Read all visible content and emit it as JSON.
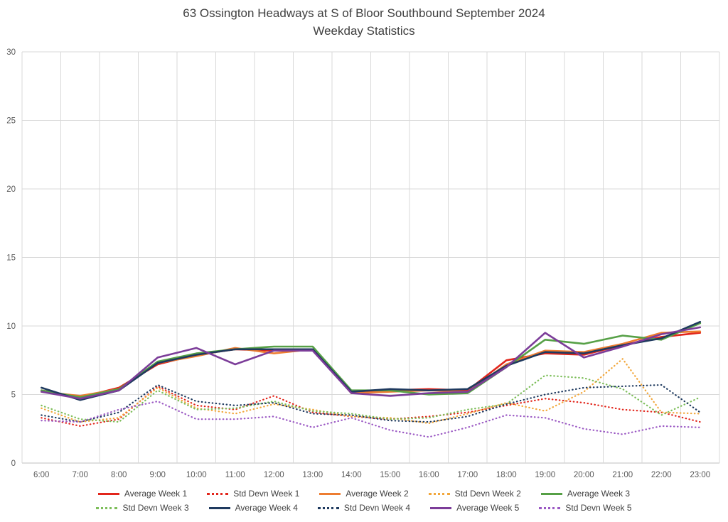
{
  "title": {
    "line1": "63 Ossington Headways at S of Bloor Southbound September 2024",
    "line2": "Weekday Statistics"
  },
  "chart_data": {
    "type": "line",
    "title": "63 Ossington Headways at S of Bloor Southbound September 2024",
    "subtitle": "Weekday Statistics",
    "xlabel": "",
    "ylabel": "",
    "ylim": [
      0,
      30
    ],
    "ytick_step": 5,
    "grid": true,
    "legend_position": "bottom",
    "grid_color": "#D9D9D9",
    "axis_line_color": "#BFBFBF",
    "axis_label_color": "#595959",
    "categories": [
      "6:00",
      "7:00",
      "8:00",
      "9:00",
      "10:00",
      "11:00",
      "12:00",
      "13:00",
      "14:00",
      "15:00",
      "16:00",
      "17:00",
      "18:00",
      "19:00",
      "20:00",
      "21:00",
      "22:00",
      "23:00"
    ],
    "series": [
      {
        "name": "Average Week 1",
        "color": "#E2261C",
        "style": "solid",
        "values": [
          5.3,
          4.8,
          5.5,
          7.2,
          7.9,
          8.3,
          8.2,
          8.3,
          5.2,
          5.3,
          5.4,
          5.3,
          7.5,
          8.0,
          7.9,
          8.6,
          9.2,
          9.5
        ]
      },
      {
        "name": "Std Devn Week 1",
        "color": "#E2261C",
        "style": "dotted",
        "values": [
          3.3,
          2.7,
          3.2,
          5.6,
          4.2,
          3.9,
          4.9,
          3.7,
          3.4,
          3.2,
          3.4,
          3.7,
          4.2,
          4.7,
          4.4,
          3.9,
          3.7,
          3.0
        ]
      },
      {
        "name": "Average Week 2",
        "color": "#ED7D31",
        "style": "solid",
        "values": [
          5.2,
          4.9,
          5.4,
          7.3,
          7.8,
          8.4,
          8.0,
          8.3,
          5.1,
          5.2,
          5.3,
          5.2,
          7.2,
          8.2,
          8.1,
          8.7,
          9.5,
          9.6
        ]
      },
      {
        "name": "Std Devn Week 2",
        "color": "#F2A73B",
        "style": "dotted",
        "values": [
          4.0,
          3.0,
          3.3,
          5.5,
          4.0,
          3.6,
          4.3,
          3.9,
          3.4,
          3.3,
          2.9,
          3.6,
          4.4,
          3.8,
          5.2,
          7.6,
          3.7,
          3.6
        ]
      },
      {
        "name": "Average Week 3",
        "color": "#56A046",
        "style": "solid",
        "values": [
          5.3,
          4.8,
          5.4,
          7.4,
          8.0,
          8.3,
          8.5,
          8.5,
          5.3,
          5.3,
          5.0,
          5.1,
          7.0,
          9.0,
          8.7,
          9.3,
          9.0,
          10.2
        ]
      },
      {
        "name": "Std Devn Week 3",
        "color": "#7DBE5A",
        "style": "dotted",
        "values": [
          4.2,
          3.2,
          3.0,
          5.3,
          3.9,
          4.0,
          4.5,
          3.8,
          3.6,
          3.2,
          3.3,
          3.9,
          4.3,
          6.4,
          6.2,
          5.4,
          3.5,
          4.8
        ]
      },
      {
        "name": "Average Week 4",
        "color": "#1F3A5F",
        "style": "solid",
        "values": [
          5.5,
          4.6,
          5.3,
          7.3,
          7.9,
          8.3,
          8.3,
          8.3,
          5.2,
          5.4,
          5.3,
          5.4,
          7.1,
          8.1,
          8.0,
          8.6,
          9.1,
          10.3
        ]
      },
      {
        "name": "Std Devn Week 4",
        "color": "#1F3A5F",
        "style": "dotted",
        "values": [
          3.5,
          3.0,
          3.7,
          5.7,
          4.5,
          4.2,
          4.4,
          3.6,
          3.5,
          3.1,
          3.0,
          3.4,
          4.3,
          5.0,
          5.5,
          5.6,
          5.7,
          3.7
        ]
      },
      {
        "name": "Average Week 5",
        "color": "#7C3D99",
        "style": "solid",
        "values": [
          5.2,
          4.7,
          5.3,
          7.7,
          8.4,
          7.2,
          8.2,
          8.2,
          5.1,
          4.9,
          5.1,
          5.2,
          7.0,
          9.5,
          7.7,
          8.5,
          9.4,
          9.9
        ]
      },
      {
        "name": "Std Devn Week 5",
        "color": "#9B59C4",
        "style": "dotted",
        "values": [
          3.1,
          3.0,
          3.9,
          4.5,
          3.2,
          3.2,
          3.4,
          2.6,
          3.3,
          2.4,
          1.9,
          2.6,
          3.5,
          3.3,
          2.5,
          2.1,
          2.7,
          2.6
        ]
      }
    ]
  }
}
